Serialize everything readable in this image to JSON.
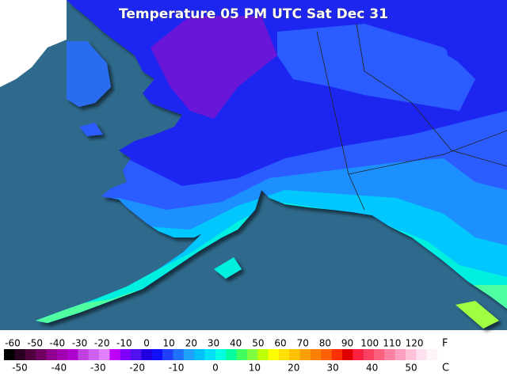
{
  "header": {
    "title": "Temperature 05 PM UTC Sat Dec 31"
  },
  "legend": {
    "fahrenheit": {
      "unit": "F",
      "labels": [
        -60,
        -50,
        -40,
        -30,
        -20,
        -10,
        0,
        10,
        20,
        30,
        40,
        50,
        60,
        70,
        80,
        90,
        100,
        110,
        120
      ]
    },
    "celsius": {
      "unit": "C",
      "labels": [
        -50,
        -40,
        -30,
        -20,
        -10,
        0,
        10,
        20,
        30,
        40,
        50
      ]
    }
  }
}
